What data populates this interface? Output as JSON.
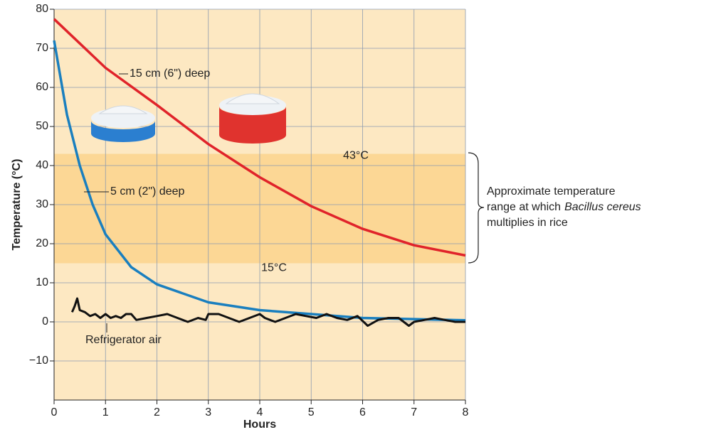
{
  "chart_data": {
    "type": "line",
    "xlabel": "Hours",
    "ylabel": "Temperature (°C)",
    "xlim": [
      0,
      8
    ],
    "xticks": [
      0,
      1,
      2,
      3,
      4,
      5,
      6,
      7,
      8
    ],
    "ylim": [
      -20,
      80
    ],
    "yticks": [
      {
        "value": -10,
        "label": "−10"
      },
      0,
      10,
      20,
      30,
      40,
      50,
      60,
      70,
      80
    ],
    "grid": true,
    "background": "#fde8c2",
    "band_color": "#fcd795",
    "band": [
      15,
      43
    ],
    "band_labels": [
      "15°C",
      "43°C"
    ],
    "bracket_text": {
      "line1": "Approximate temperature",
      "line2_a": "range at which",
      "line2_b": "Bacillus cereus",
      "line3": "multiplies in rice"
    },
    "series": [
      {
        "name": "15 cm (6\") deep",
        "color": "#e0232a",
        "x": [
          0,
          1,
          2,
          3,
          4,
          5,
          6,
          7,
          8
        ],
        "values": [
          77.5,
          65,
          55.5,
          45.5,
          37,
          29.6,
          23.8,
          19.6,
          17
        ]
      },
      {
        "name": "5 cm (2\") deep",
        "color": "#1a7fbf",
        "x": [
          0,
          0.25,
          0.5,
          0.75,
          1,
          1.5,
          2,
          3,
          4,
          5,
          6,
          7,
          8
        ],
        "values": [
          72,
          53,
          40,
          30,
          22.4,
          14,
          9.6,
          5,
          3,
          2,
          1,
          0.7,
          0.4
        ]
      },
      {
        "name": "Refrigerator air",
        "color": "#111111",
        "x": [
          0.35,
          0.4,
          0.45,
          0.5,
          0.6,
          0.7,
          0.8,
          0.9,
          1.0,
          1.1,
          1.2,
          1.3,
          1.4,
          1.5,
          1.6,
          1.8,
          2.0,
          2.2,
          2.4,
          2.6,
          2.8,
          2.95,
          3.0,
          3.2,
          3.4,
          3.6,
          3.8,
          4.0,
          4.1,
          4.3,
          4.5,
          4.7,
          4.9,
          5.1,
          5.3,
          5.5,
          5.7,
          5.9,
          6.1,
          6.3,
          6.5,
          6.7,
          6.8,
          6.9,
          7.0,
          7.2,
          7.4,
          7.6,
          7.8,
          8.0
        ],
        "values": [
          2.5,
          4,
          6,
          3,
          2.5,
          1.5,
          2,
          1,
          2,
          1,
          1.5,
          1,
          2,
          2,
          0.5,
          1,
          1.5,
          2,
          1,
          0,
          1,
          0.5,
          2,
          2,
          1,
          0,
          1,
          2,
          1,
          0,
          1,
          2,
          1.5,
          1,
          2,
          1,
          0.5,
          1.5,
          -1,
          0.5,
          1,
          1,
          0,
          -1,
          0,
          0.5,
          1,
          0.5,
          0,
          0
        ]
      }
    ]
  }
}
